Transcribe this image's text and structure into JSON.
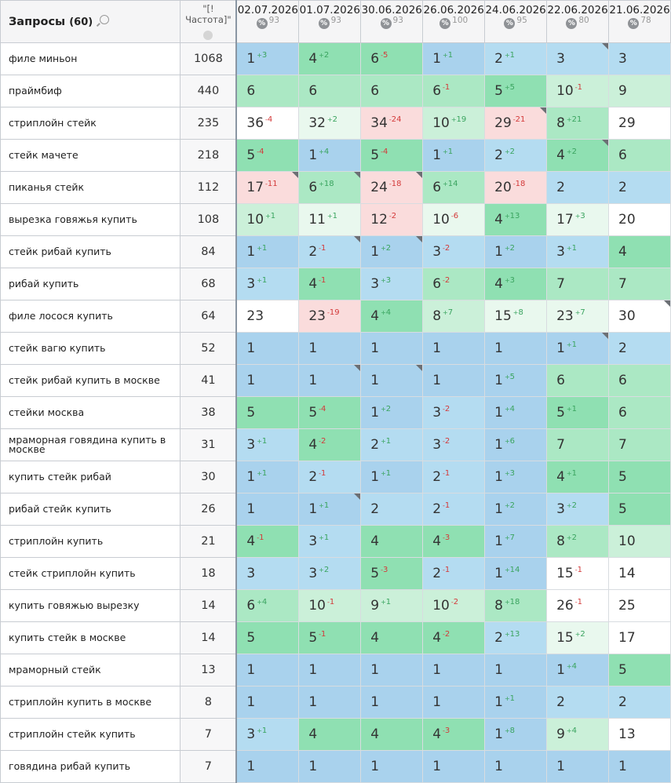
{
  "header": {
    "queries_title": "Запросы",
    "queries_count": "(60)",
    "freq_title": "\"[!Частота]\"",
    "pct_icon": "%",
    "dates": [
      {
        "date": "02.07.2026",
        "pct": "93"
      },
      {
        "date": "01.07.2026",
        "pct": "93"
      },
      {
        "date": "30.06.2026",
        "pct": "93"
      },
      {
        "date": "26.06.2026",
        "pct": "100"
      },
      {
        "date": "24.06.2026",
        "pct": "95"
      },
      {
        "date": "22.06.2026",
        "pct": "80"
      },
      {
        "date": "21.06.2026",
        "pct": "78"
      }
    ]
  },
  "rows": [
    {
      "q": "филе миньон",
      "f": "1068",
      "cells": [
        [
          "1",
          "3",
          "up",
          "c-top",
          0
        ],
        [
          "4",
          "2",
          "up",
          "c-g",
          0
        ],
        [
          "6",
          "5",
          "dn",
          "c-g",
          0
        ],
        [
          "1",
          "1",
          "up",
          "c-top",
          0
        ],
        [
          "2",
          "1",
          "up",
          "c-top3",
          0
        ],
        [
          "3",
          "",
          "",
          "c-top3",
          1
        ],
        [
          "3",
          "",
          "",
          "c-top3",
          0
        ]
      ]
    },
    {
      "q": "праймбиф",
      "f": "440",
      "cells": [
        [
          "6",
          "",
          "",
          "c-lg",
          0
        ],
        [
          "6",
          "",
          "",
          "c-lg",
          0
        ],
        [
          "6",
          "",
          "",
          "c-lg",
          0
        ],
        [
          "6",
          "1",
          "dn",
          "c-lg",
          0
        ],
        [
          "5",
          "5",
          "up",
          "c-g",
          0
        ],
        [
          "10",
          "1",
          "dn",
          "c-vlg",
          0
        ],
        [
          "9",
          "",
          "",
          "c-vlg",
          0
        ]
      ]
    },
    {
      "q": "стриплойн стейк",
      "f": "235",
      "cells": [
        [
          "36",
          "4",
          "dn",
          "c-w",
          0
        ],
        [
          "32",
          "2",
          "up",
          "c-pale",
          0
        ],
        [
          "34",
          "24",
          "dn",
          "c-pink",
          0
        ],
        [
          "10",
          "19",
          "up",
          "c-vlg",
          0
        ],
        [
          "29",
          "21",
          "dn",
          "c-pink",
          1
        ],
        [
          "8",
          "21",
          "up",
          "c-lg",
          0
        ],
        [
          "29",
          "",
          "",
          "c-w",
          0
        ]
      ]
    },
    {
      "q": "стейк мачете",
      "f": "218",
      "cells": [
        [
          "5",
          "4",
          "dn",
          "c-g",
          0
        ],
        [
          "1",
          "4",
          "up",
          "c-top",
          0
        ],
        [
          "5",
          "4",
          "dn",
          "c-g",
          0
        ],
        [
          "1",
          "1",
          "up",
          "c-top",
          0
        ],
        [
          "2",
          "2",
          "up",
          "c-top3",
          0
        ],
        [
          "4",
          "2",
          "up",
          "c-g",
          1
        ],
        [
          "6",
          "",
          "",
          "c-lg",
          0
        ]
      ]
    },
    {
      "q": "пиканья стейк",
      "f": "112",
      "cells": [
        [
          "17",
          "11",
          "dn",
          "c-pink",
          1
        ],
        [
          "6",
          "18",
          "up",
          "c-lg",
          1
        ],
        [
          "24",
          "18",
          "dn",
          "c-pink",
          1
        ],
        [
          "6",
          "14",
          "up",
          "c-lg",
          0
        ],
        [
          "20",
          "18",
          "dn",
          "c-pink",
          0
        ],
        [
          "2",
          "",
          "",
          "c-top3",
          0
        ],
        [
          "2",
          "",
          "",
          "c-top3",
          0
        ]
      ]
    },
    {
      "q": "вырезка говяжья купить",
      "f": "108",
      "cells": [
        [
          "10",
          "1",
          "up",
          "c-vlg",
          0
        ],
        [
          "11",
          "1",
          "up",
          "c-pale",
          0
        ],
        [
          "12",
          "2",
          "dn",
          "c-pink",
          0
        ],
        [
          "10",
          "6",
          "dn",
          "c-pale",
          0
        ],
        [
          "4",
          "13",
          "up",
          "c-g",
          0
        ],
        [
          "17",
          "3",
          "up",
          "c-pale",
          0
        ],
        [
          "20",
          "",
          "",
          "c-w",
          0
        ]
      ]
    },
    {
      "q": "стейк рибай купить",
      "f": "84",
      "cells": [
        [
          "1",
          "1",
          "up",
          "c-top",
          0
        ],
        [
          "2",
          "1",
          "dn",
          "c-top3",
          1
        ],
        [
          "1",
          "2",
          "up",
          "c-top",
          1
        ],
        [
          "3",
          "2",
          "dn",
          "c-top3",
          0
        ],
        [
          "1",
          "2",
          "up",
          "c-top",
          0
        ],
        [
          "3",
          "1",
          "up",
          "c-top3",
          0
        ],
        [
          "4",
          "",
          "",
          "c-g",
          0
        ]
      ]
    },
    {
      "q": "рибай купить",
      "f": "68",
      "cells": [
        [
          "3",
          "1",
          "up",
          "c-top3",
          0
        ],
        [
          "4",
          "1",
          "dn",
          "c-g",
          0
        ],
        [
          "3",
          "3",
          "up",
          "c-top3",
          0
        ],
        [
          "6",
          "2",
          "dn",
          "c-lg",
          0
        ],
        [
          "4",
          "3",
          "up",
          "c-g",
          0
        ],
        [
          "7",
          "",
          "",
          "c-lg",
          0
        ],
        [
          "7",
          "",
          "",
          "c-lg",
          0
        ]
      ]
    },
    {
      "q": "филе лосося купить",
      "f": "64",
      "cells": [
        [
          "23",
          "",
          "",
          "c-w",
          0
        ],
        [
          "23",
          "19",
          "dn",
          "c-pink",
          0
        ],
        [
          "4",
          "4",
          "up",
          "c-g",
          0
        ],
        [
          "8",
          "7",
          "up",
          "c-vlg",
          0
        ],
        [
          "15",
          "8",
          "up",
          "c-pale",
          0
        ],
        [
          "23",
          "7",
          "up",
          "c-pale",
          0
        ],
        [
          "30",
          "",
          "",
          "c-w",
          1
        ]
      ]
    },
    {
      "q": "стейк вагю купить",
      "f": "52",
      "cells": [
        [
          "1",
          "",
          "",
          "c-top",
          0
        ],
        [
          "1",
          "",
          "",
          "c-top",
          0
        ],
        [
          "1",
          "",
          "",
          "c-top",
          0
        ],
        [
          "1",
          "",
          "",
          "c-top",
          0
        ],
        [
          "1",
          "",
          "",
          "c-top",
          0
        ],
        [
          "1",
          "1",
          "up",
          "c-top",
          1
        ],
        [
          "2",
          "",
          "",
          "c-top3",
          0
        ]
      ]
    },
    {
      "q": "стейк рибай купить в москве",
      "f": "41",
      "cells": [
        [
          "1",
          "",
          "",
          "c-top",
          0
        ],
        [
          "1",
          "",
          "",
          "c-top",
          1
        ],
        [
          "1",
          "",
          "",
          "c-top",
          1
        ],
        [
          "1",
          "",
          "",
          "c-top",
          0
        ],
        [
          "1",
          "5",
          "up",
          "c-top",
          0
        ],
        [
          "6",
          "",
          "",
          "c-lg",
          0
        ],
        [
          "6",
          "",
          "",
          "c-lg",
          0
        ]
      ]
    },
    {
      "q": "стейки москва",
      "f": "38",
      "cells": [
        [
          "5",
          "",
          "",
          "c-g",
          0
        ],
        [
          "5",
          "4",
          "dn",
          "c-g",
          0
        ],
        [
          "1",
          "2",
          "up",
          "c-top",
          0
        ],
        [
          "3",
          "2",
          "dn",
          "c-top3",
          0
        ],
        [
          "1",
          "4",
          "up",
          "c-top",
          0
        ],
        [
          "5",
          "1",
          "up",
          "c-g",
          0
        ],
        [
          "6",
          "",
          "",
          "c-lg",
          0
        ]
      ]
    },
    {
      "q": "мраморная говядина купить в москве",
      "f": "31",
      "cells": [
        [
          "3",
          "1",
          "up",
          "c-top3",
          0
        ],
        [
          "4",
          "2",
          "dn",
          "c-g",
          0
        ],
        [
          "2",
          "1",
          "up",
          "c-top3",
          0
        ],
        [
          "3",
          "2",
          "dn",
          "c-top3",
          0
        ],
        [
          "1",
          "6",
          "up",
          "c-top",
          0
        ],
        [
          "7",
          "",
          "",
          "c-lg",
          0
        ],
        [
          "7",
          "",
          "",
          "c-lg",
          0
        ]
      ]
    },
    {
      "q": "купить стейк рибай",
      "f": "30",
      "cells": [
        [
          "1",
          "1",
          "up",
          "c-top",
          0
        ],
        [
          "2",
          "1",
          "dn",
          "c-top3",
          0
        ],
        [
          "1",
          "1",
          "up",
          "c-top",
          0
        ],
        [
          "2",
          "1",
          "dn",
          "c-top3",
          0
        ],
        [
          "1",
          "3",
          "up",
          "c-top",
          0
        ],
        [
          "4",
          "1",
          "up",
          "c-g",
          0
        ],
        [
          "5",
          "",
          "",
          "c-g",
          0
        ]
      ]
    },
    {
      "q": "рибай стейк купить",
      "f": "26",
      "cells": [
        [
          "1",
          "",
          "",
          "c-top",
          0
        ],
        [
          "1",
          "1",
          "up",
          "c-top",
          1
        ],
        [
          "2",
          "",
          "",
          "c-top3",
          0
        ],
        [
          "2",
          "1",
          "dn",
          "c-top3",
          0
        ],
        [
          "1",
          "2",
          "up",
          "c-top",
          0
        ],
        [
          "3",
          "2",
          "up",
          "c-top3",
          0
        ],
        [
          "5",
          "",
          "",
          "c-g",
          0
        ]
      ]
    },
    {
      "q": "стриплойн купить",
      "f": "21",
      "cells": [
        [
          "4",
          "1",
          "dn",
          "c-g",
          0
        ],
        [
          "3",
          "1",
          "up",
          "c-top3",
          0
        ],
        [
          "4",
          "",
          "",
          "c-g",
          0
        ],
        [
          "4",
          "3",
          "dn",
          "c-g",
          0
        ],
        [
          "1",
          "7",
          "up",
          "c-top",
          0
        ],
        [
          "8",
          "2",
          "up",
          "c-lg",
          0
        ],
        [
          "10",
          "",
          "",
          "c-vlg",
          0
        ]
      ]
    },
    {
      "q": "стейк стриплойн купить",
      "f": "18",
      "cells": [
        [
          "3",
          "",
          "",
          "c-top3",
          0
        ],
        [
          "3",
          "2",
          "up",
          "c-top3",
          0
        ],
        [
          "5",
          "3",
          "dn",
          "c-g",
          0
        ],
        [
          "2",
          "1",
          "dn",
          "c-top3",
          0
        ],
        [
          "1",
          "14",
          "up",
          "c-top",
          0
        ],
        [
          "15",
          "1",
          "dn",
          "c-w",
          0
        ],
        [
          "14",
          "",
          "",
          "c-w",
          0
        ]
      ]
    },
    {
      "q": "купить говяжью вырезку",
      "f": "14",
      "cells": [
        [
          "6",
          "4",
          "up",
          "c-lg",
          0
        ],
        [
          "10",
          "1",
          "dn",
          "c-vlg",
          0
        ],
        [
          "9",
          "1",
          "up",
          "c-vlg",
          0
        ],
        [
          "10",
          "2",
          "dn",
          "c-vlg",
          0
        ],
        [
          "8",
          "18",
          "up",
          "c-lg",
          0
        ],
        [
          "26",
          "1",
          "dn",
          "c-w",
          0
        ],
        [
          "25",
          "",
          "",
          "c-w",
          0
        ]
      ]
    },
    {
      "q": "купить стейк в москве",
      "f": "14",
      "cells": [
        [
          "5",
          "",
          "",
          "c-g",
          0
        ],
        [
          "5",
          "1",
          "dn",
          "c-g",
          0
        ],
        [
          "4",
          "",
          "",
          "c-g",
          0
        ],
        [
          "4",
          "2",
          "dn",
          "c-g",
          0
        ],
        [
          "2",
          "13",
          "up",
          "c-top3",
          0
        ],
        [
          "15",
          "2",
          "up",
          "c-pale",
          0
        ],
        [
          "17",
          "",
          "",
          "c-w",
          0
        ]
      ]
    },
    {
      "q": "мраморный стейк",
      "f": "13",
      "cells": [
        [
          "1",
          "",
          "",
          "c-top",
          0
        ],
        [
          "1",
          "",
          "",
          "c-top",
          0
        ],
        [
          "1",
          "",
          "",
          "c-top",
          0
        ],
        [
          "1",
          "",
          "",
          "c-top",
          0
        ],
        [
          "1",
          "",
          "",
          "c-top",
          0
        ],
        [
          "1",
          "4",
          "up",
          "c-top",
          0
        ],
        [
          "5",
          "",
          "",
          "c-g",
          0
        ]
      ]
    },
    {
      "q": "стриплойн купить в москве",
      "f": "8",
      "cells": [
        [
          "1",
          "",
          "",
          "c-top",
          0
        ],
        [
          "1",
          "",
          "",
          "c-top",
          0
        ],
        [
          "1",
          "",
          "",
          "c-top",
          0
        ],
        [
          "1",
          "",
          "",
          "c-top",
          0
        ],
        [
          "1",
          "1",
          "up",
          "c-top",
          0
        ],
        [
          "2",
          "",
          "",
          "c-top3",
          0
        ],
        [
          "2",
          "",
          "",
          "c-top3",
          0
        ]
      ]
    },
    {
      "q": "стриплойн стейк купить",
      "f": "7",
      "cells": [
        [
          "3",
          "1",
          "up",
          "c-top3",
          0
        ],
        [
          "4",
          "",
          "",
          "c-g",
          0
        ],
        [
          "4",
          "",
          "",
          "c-g",
          0
        ],
        [
          "4",
          "3",
          "dn",
          "c-g",
          0
        ],
        [
          "1",
          "8",
          "up",
          "c-top",
          0
        ],
        [
          "9",
          "4",
          "up",
          "c-vlg",
          0
        ],
        [
          "13",
          "",
          "",
          "c-w",
          0
        ]
      ]
    },
    {
      "q": "говядина рибай купить",
      "f": "7",
      "cells": [
        [
          "1",
          "",
          "",
          "c-top",
          0
        ],
        [
          "1",
          "",
          "",
          "c-top",
          0
        ],
        [
          "1",
          "",
          "",
          "c-top",
          0
        ],
        [
          "1",
          "",
          "",
          "c-top",
          0
        ],
        [
          "1",
          "",
          "",
          "c-top",
          0
        ],
        [
          "1",
          "",
          "",
          "c-top",
          0
        ],
        [
          "1",
          "",
          "",
          "c-top",
          0
        ]
      ]
    }
  ]
}
